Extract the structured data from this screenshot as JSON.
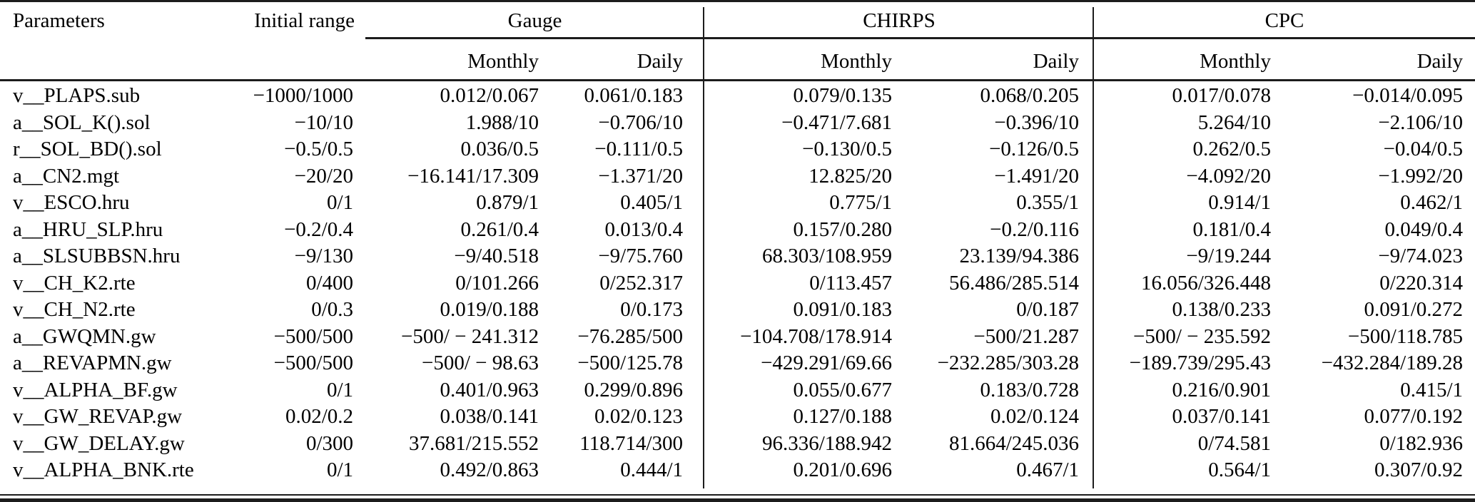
{
  "page": {
    "background": "#ffffff",
    "text_color": "#000000",
    "rule_color": "#1c1c1c"
  },
  "table": {
    "header": {
      "parameters": "Parameters",
      "initial_range": "Initial range",
      "groups": [
        {
          "label": "Gauge",
          "sub_columns": [
            "Monthly",
            "Daily"
          ]
        },
        {
          "label": "CHIRPS",
          "sub_columns": [
            "Monthly",
            "Daily"
          ]
        },
        {
          "label": "CPC",
          "sub_columns": [
            "Monthly",
            "Daily"
          ]
        }
      ]
    },
    "column_keys": [
      "parameter-name",
      "initial-range-value",
      "gauge-monthly-value",
      "gauge-daily-value",
      "chirps-monthly-value",
      "chirps-daily-value",
      "cpc-monthly-value",
      "cpc-daily-value"
    ],
    "rows": [
      [
        "v__PLAPS.sub",
        "−1000/1000",
        "0.012/0.067",
        "0.061/0.183",
        "0.079/0.135",
        "0.068/0.205",
        "0.017/0.078",
        "−0.014/0.095"
      ],
      [
        "a__SOL_K().sol",
        "−10/10",
        "1.988/10",
        "−0.706/10",
        "−0.471/7.681",
        "−0.396/10",
        "5.264/10",
        "−2.106/10"
      ],
      [
        "r__SOL_BD().sol",
        "−0.5/0.5",
        "0.036/0.5",
        "−0.111/0.5",
        "−0.130/0.5",
        "−0.126/0.5",
        "0.262/0.5",
        "−0.04/0.5"
      ],
      [
        "a__CN2.mgt",
        "−20/20",
        "−16.141/17.309",
        "−1.371/20",
        "12.825/20",
        "−1.491/20",
        "−4.092/20",
        "−1.992/20"
      ],
      [
        "v__ESCO.hru",
        "0/1",
        "0.879/1",
        "0.405/1",
        "0.775/1",
        "0.355/1",
        "0.914/1",
        "0.462/1"
      ],
      [
        "a__HRU_SLP.hru",
        "−0.2/0.4",
        "0.261/0.4",
        "0.013/0.4",
        "0.157/0.280",
        "−0.2/0.116",
        "0.181/0.4",
        "0.049/0.4"
      ],
      [
        "a__SLSUBBSN.hru",
        "−9/130",
        "−9/40.518",
        "−9/75.760",
        "68.303/108.959",
        "23.139/94.386",
        "−9/19.244",
        "−9/74.023"
      ],
      [
        "v__CH_K2.rte",
        "0/400",
        "0/101.266",
        "0/252.317",
        "0/113.457",
        "56.486/285.514",
        "16.056/326.448",
        "0/220.314"
      ],
      [
        "v__CH_N2.rte",
        "0/0.3",
        "0.019/0.188",
        "0/0.173",
        "0.091/0.183",
        "0/0.187",
        "0.138/0.233",
        "0.091/0.272"
      ],
      [
        "a__GWQMN.gw",
        "−500/500",
        "−500/ − 241.312",
        "−76.285/500",
        "−104.708/178.914",
        "−500/21.287",
        "−500/ − 235.592",
        "−500/118.785"
      ],
      [
        "a__REVAPMN.gw",
        "−500/500",
        "−500/ − 98.63",
        "−500/125.78",
        "−429.291/69.66",
        "−232.285/303.28",
        "−189.739/295.43",
        "−432.284/189.28"
      ],
      [
        "v__ALPHA_BF.gw",
        "0/1",
        "0.401/0.963",
        "0.299/0.896",
        "0.055/0.677",
        "0.183/0.728",
        "0.216/0.901",
        "0.415/1"
      ],
      [
        "v__GW_REVAP.gw",
        "0.02/0.2",
        "0.038/0.141",
        "0.02/0.123",
        "0.127/0.188",
        "0.02/0.124",
        "0.037/0.141",
        "0.077/0.192"
      ],
      [
        "v__GW_DELAY.gw",
        "0/300",
        "37.681/215.552",
        "118.714/300",
        "96.336/188.942",
        "81.664/245.036",
        "0/74.581",
        "0/182.936"
      ],
      [
        "v__ALPHA_BNK.rte",
        "0/1",
        "0.492/0.863",
        "0.444/1",
        "0.201/0.696",
        "0.467/1",
        "0.564/1",
        "0.307/0.92"
      ]
    ]
  }
}
